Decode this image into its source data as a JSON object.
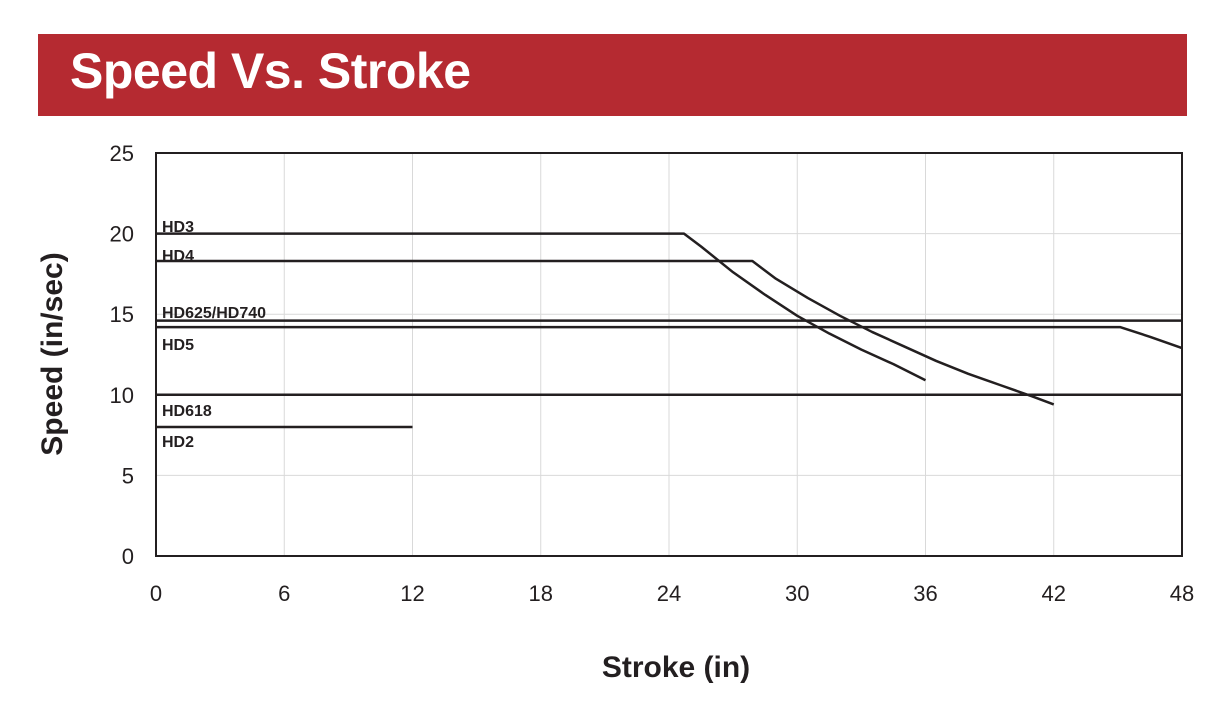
{
  "page": {
    "banner_title": "Speed Vs. Stroke"
  },
  "colors": {
    "banner": "#b52a31",
    "line": "#231f20",
    "grid": "#d9d9d9",
    "text": "#231f20"
  },
  "chart_data": {
    "type": "line",
    "title": "",
    "xlabel": "Stroke (in)",
    "ylabel": "Speed (in/sec)",
    "xlim": [
      0,
      48
    ],
    "ylim": [
      0,
      25
    ],
    "xticks": [
      0,
      6,
      12,
      18,
      24,
      30,
      36,
      42,
      48
    ],
    "yticks": [
      0,
      5,
      10,
      15,
      20,
      25
    ],
    "grid": true,
    "series": [
      {
        "name": "HD3",
        "points": [
          [
            0,
            20
          ],
          [
            24.7,
            20
          ],
          [
            25.5,
            19.2
          ],
          [
            27,
            17.6
          ],
          [
            28.5,
            16.2
          ],
          [
            30,
            14.9
          ],
          [
            31.5,
            13.8
          ],
          [
            33,
            12.8
          ],
          [
            34.5,
            11.9
          ],
          [
            36,
            10.9
          ]
        ]
      },
      {
        "name": "HD4",
        "points": [
          [
            0,
            18.3
          ],
          [
            27.9,
            18.3
          ],
          [
            29,
            17.2
          ],
          [
            30.5,
            16
          ],
          [
            32,
            14.9
          ],
          [
            33.5,
            13.9
          ],
          [
            35,
            13
          ],
          [
            36.5,
            12.1
          ],
          [
            38,
            11.3
          ],
          [
            39.5,
            10.6
          ],
          [
            41,
            9.9
          ],
          [
            42,
            9.4
          ]
        ]
      },
      {
        "name": "HD625/HD740",
        "points": [
          [
            0,
            14.6
          ],
          [
            48,
            14.6
          ]
        ]
      },
      {
        "name": "HD5",
        "points": [
          [
            0,
            14.2
          ],
          [
            45.1,
            14.2
          ],
          [
            46.5,
            13.6
          ],
          [
            48,
            12.9
          ]
        ]
      },
      {
        "name": "HD618",
        "points": [
          [
            0,
            10
          ],
          [
            48,
            10
          ]
        ]
      },
      {
        "name": "HD2",
        "points": [
          [
            0,
            8
          ],
          [
            12,
            8
          ]
        ]
      }
    ]
  }
}
